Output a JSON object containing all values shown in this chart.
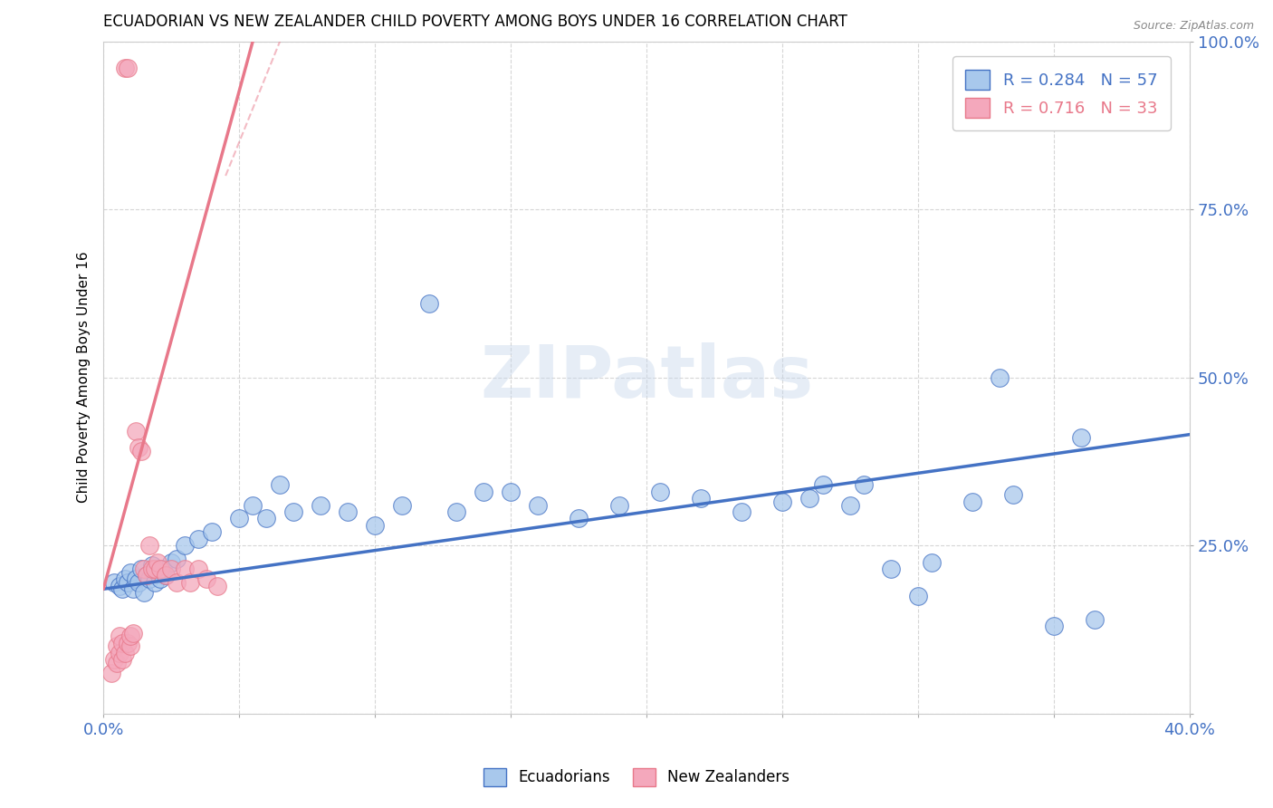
{
  "title": "ECUADORIAN VS NEW ZEALANDER CHILD POVERTY AMONG BOYS UNDER 16 CORRELATION CHART",
  "source": "Source: ZipAtlas.com",
  "ylabel": "Child Poverty Among Boys Under 16",
  "xlim": [
    0.0,
    0.4
  ],
  "ylim": [
    0.0,
    1.0
  ],
  "xticks": [
    0.0,
    0.05,
    0.1,
    0.15,
    0.2,
    0.25,
    0.3,
    0.35,
    0.4
  ],
  "yticks": [
    0.0,
    0.25,
    0.5,
    0.75,
    1.0
  ],
  "R_blue": 0.284,
  "N_blue": 57,
  "R_pink": 0.716,
  "N_pink": 33,
  "blue_color": "#A8C8EC",
  "pink_color": "#F4A8BC",
  "blue_line_color": "#4472C4",
  "pink_line_color": "#E8788A",
  "watermark": "ZIPatlas",
  "blue_trend_x": [
    0.0,
    0.4
  ],
  "blue_trend_y": [
    0.185,
    0.415
  ],
  "pink_trend_x": [
    0.0,
    0.055
  ],
  "pink_trend_y": [
    0.185,
    1.0
  ],
  "blue_scatter_x": [
    0.004,
    0.006,
    0.007,
    0.008,
    0.009,
    0.01,
    0.011,
    0.012,
    0.013,
    0.014,
    0.015,
    0.016,
    0.017,
    0.018,
    0.019,
    0.02,
    0.021,
    0.022,
    0.023,
    0.025,
    0.027,
    0.03,
    0.035,
    0.04,
    0.05,
    0.055,
    0.06,
    0.065,
    0.07,
    0.08,
    0.09,
    0.1,
    0.11,
    0.12,
    0.13,
    0.14,
    0.15,
    0.16,
    0.175,
    0.19,
    0.205,
    0.22,
    0.235,
    0.25,
    0.26,
    0.275,
    0.29,
    0.305,
    0.32,
    0.335,
    0.35,
    0.365,
    0.265,
    0.28,
    0.3,
    0.33,
    0.36
  ],
  "blue_scatter_y": [
    0.195,
    0.19,
    0.185,
    0.2,
    0.195,
    0.21,
    0.185,
    0.2,
    0.195,
    0.215,
    0.18,
    0.205,
    0.2,
    0.22,
    0.195,
    0.21,
    0.2,
    0.215,
    0.205,
    0.225,
    0.23,
    0.25,
    0.26,
    0.27,
    0.29,
    0.31,
    0.29,
    0.34,
    0.3,
    0.31,
    0.3,
    0.28,
    0.31,
    0.61,
    0.3,
    0.33,
    0.33,
    0.31,
    0.29,
    0.31,
    0.33,
    0.32,
    0.3,
    0.315,
    0.32,
    0.31,
    0.215,
    0.225,
    0.315,
    0.325,
    0.13,
    0.14,
    0.34,
    0.34,
    0.175,
    0.5,
    0.41
  ],
  "pink_scatter_x": [
    0.003,
    0.004,
    0.005,
    0.005,
    0.006,
    0.006,
    0.007,
    0.007,
    0.008,
    0.008,
    0.009,
    0.009,
    0.01,
    0.01,
    0.011,
    0.012,
    0.013,
    0.014,
    0.015,
    0.016,
    0.017,
    0.018,
    0.019,
    0.02,
    0.021,
    0.023,
    0.025,
    0.027,
    0.03,
    0.032,
    0.035,
    0.038,
    0.042
  ],
  "pink_scatter_y": [
    0.06,
    0.08,
    0.075,
    0.1,
    0.09,
    0.115,
    0.08,
    0.105,
    0.09,
    0.96,
    0.96,
    0.105,
    0.1,
    0.115,
    0.12,
    0.42,
    0.395,
    0.39,
    0.215,
    0.205,
    0.25,
    0.215,
    0.215,
    0.225,
    0.215,
    0.205,
    0.215,
    0.195,
    0.215,
    0.195,
    0.215,
    0.2,
    0.19
  ]
}
